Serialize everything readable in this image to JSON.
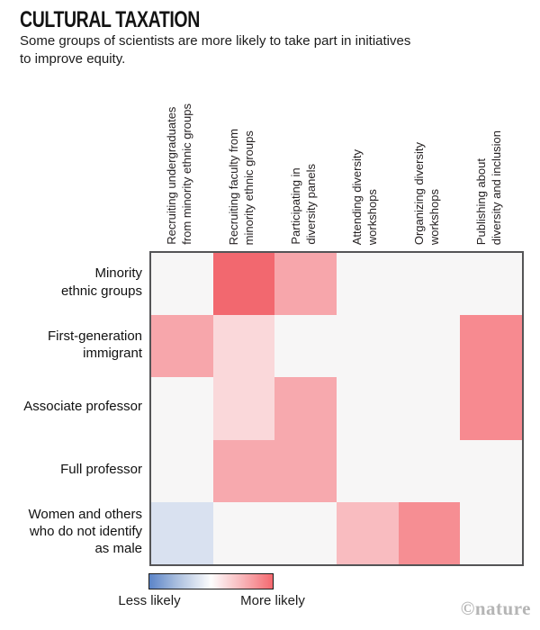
{
  "header": {
    "title": "CULTURAL TAXATION",
    "subtitle": "Some groups of scientists are more likely to take part in initiatives\nto improve equity."
  },
  "chart_data": {
    "type": "heatmap",
    "title": "CULTURAL TAXATION",
    "subtitle": "Some groups of scientists are more likely to take part in initiatives to improve equity.",
    "columns": [
      "Recruiting undergraduates\nfrom minority ethnic groups",
      "Recruiting faculty from\nminority ethnic groups",
      "Participating in\ndiversity panels",
      "Attending diversity\nworkshops",
      "Organizing diversity\nworkshops",
      "Publishing about\ndiversity and inclusion"
    ],
    "rows": [
      "Minority\nethnic groups",
      "First-generation\nimmigrant",
      "Associate professor",
      "Full professor",
      "Women and others\nwho do not identify\nas male"
    ],
    "values": [
      [
        0,
        0.9,
        0.45,
        0,
        0,
        0
      ],
      [
        0.45,
        0.15,
        0,
        0,
        0,
        0.65
      ],
      [
        0,
        0.15,
        0.45,
        0,
        0,
        0.65
      ],
      [
        0,
        0.45,
        0.45,
        0,
        0,
        0
      ],
      [
        -0.2,
        0,
        0,
        0.35,
        0.6,
        0
      ]
    ],
    "value_note": "Relative likelihood estimated from cell colour, scale -1 (less likely, blue) to +1 (more likely, red)",
    "cell_colors": [
      [
        "#f7f6f6",
        "#f2686f",
        "#f7a6ab",
        "#f7f6f6",
        "#f7f6f6",
        "#f7f6f6"
      ],
      [
        "#f7a6ab",
        "#fad8da",
        "#f7f6f6",
        "#f7f6f6",
        "#f7f6f6",
        "#f78a90"
      ],
      [
        "#f7f6f6",
        "#fad8da",
        "#f7a9ae",
        "#f7f6f6",
        "#f7f6f6",
        "#f78a90"
      ],
      [
        "#f7f6f6",
        "#f7a9ae",
        "#f7a9ae",
        "#f7f6f6",
        "#f7f6f6",
        "#f7f6f6"
      ],
      [
        "#d9e1f0",
        "#f7f6f6",
        "#f7f6f6",
        "#f9bcc0",
        "#f68e93",
        "#f7f6f6"
      ]
    ],
    "legend": {
      "type": "gradient",
      "min_label": "Less likely",
      "max_label": "More likely",
      "min_color": "#5b84c8",
      "mid_color": "#fdfdfd",
      "max_color": "#f5696f",
      "position": "bottom-left"
    },
    "layout": {
      "grid_border_color": "#545456",
      "neutral_cell_color": "#f7f6f6",
      "grid_lines": false
    }
  },
  "legend": {
    "less_label": "Less likely",
    "more_label": "More likely"
  },
  "footer": {
    "credit": "©nature"
  }
}
